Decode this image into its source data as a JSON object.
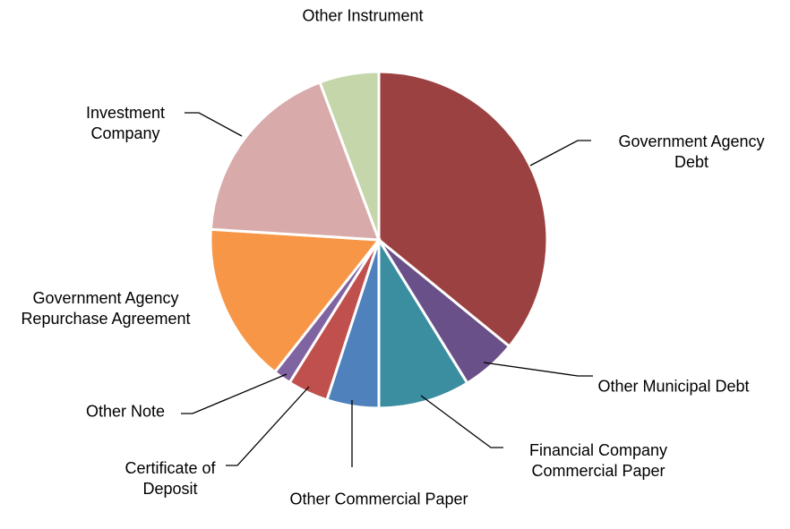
{
  "chart_data": {
    "type": "pie",
    "categories": [
      "Government Agency Debt",
      "Other Municipal Debt",
      "Financial Company Commercial Paper",
      "Other Commercial Paper",
      "Certificate of Deposit",
      "Other Note",
      "Government Agency Repurchase Agreement",
      "Investment Company",
      "Other Instrument"
    ],
    "values": [
      35.9,
      5.3,
      8.8,
      5.0,
      3.9,
      1.7,
      15.4,
      18.3,
      5.7
    ],
    "colors": [
      "#9c4141",
      "#6a5088",
      "#3a8ea0",
      "#4f81bd",
      "#c0504d",
      "#8064a2",
      "#f79646",
      "#d9aaaa",
      "#c4d6aa"
    ]
  }
}
